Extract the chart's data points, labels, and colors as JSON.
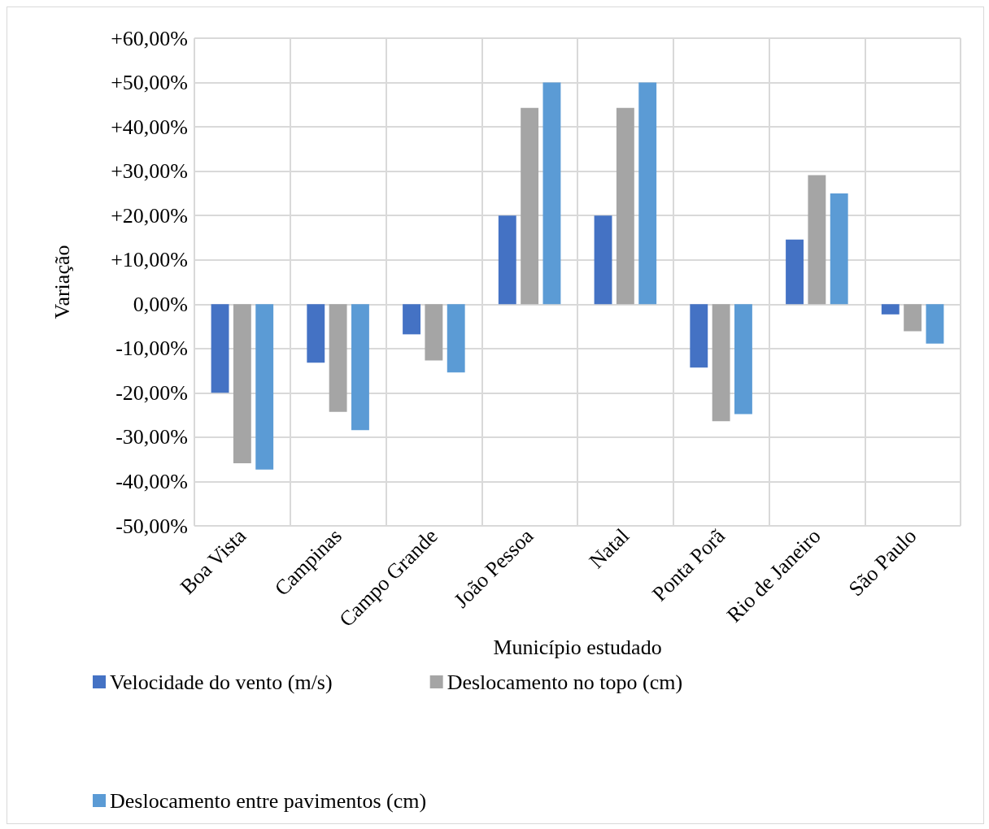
{
  "chart_data": {
    "type": "bar",
    "xlabel": "Município estudado",
    "ylabel": "Variação",
    "categories": [
      "Boa Vista",
      "Campinas",
      "Campo Grande",
      "João Pessoa",
      "Natal",
      "Ponta Porã",
      "Rio de Janeiro",
      "São Paulo"
    ],
    "series": [
      {
        "name": "Velocidade do vento (m/s)",
        "color": "#4472c4",
        "values": [
          -20.0,
          -13.2,
          -6.8,
          20.0,
          20.0,
          -14.3,
          14.6,
          -2.3
        ]
      },
      {
        "name": "Deslocamento no topo (cm)",
        "color": "#a5a5a5",
        "values": [
          -35.9,
          -24.3,
          -12.7,
          44.3,
          44.3,
          -26.4,
          29.1,
          -6.1
        ]
      },
      {
        "name": "Deslocamento entre pavimentos (cm)",
        "color": "#5b9bd5",
        "values": [
          -37.3,
          -28.4,
          -15.4,
          50.0,
          50.0,
          -24.8,
          25.0,
          -8.9
        ]
      }
    ],
    "ylim": [
      -50,
      60
    ],
    "yticks": [
      {
        "value": -50,
        "label": "-50,00%"
      },
      {
        "value": -40,
        "label": "-40,00%"
      },
      {
        "value": -30,
        "label": "-30,00%"
      },
      {
        "value": -20,
        "label": "-20,00%"
      },
      {
        "value": -10,
        "label": "-10,00%"
      },
      {
        "value": 0,
        "label": "0,00%"
      },
      {
        "value": 10,
        "label": "+10,00%"
      },
      {
        "value": 20,
        "label": "+20,00%"
      },
      {
        "value": 30,
        "label": "+30,00%"
      },
      {
        "value": 40,
        "label": "+40,00%"
      },
      {
        "value": 50,
        "label": "+50,00%"
      },
      {
        "value": 60,
        "label": "+60,00%"
      }
    ],
    "grid": true,
    "legend": "bottom"
  }
}
